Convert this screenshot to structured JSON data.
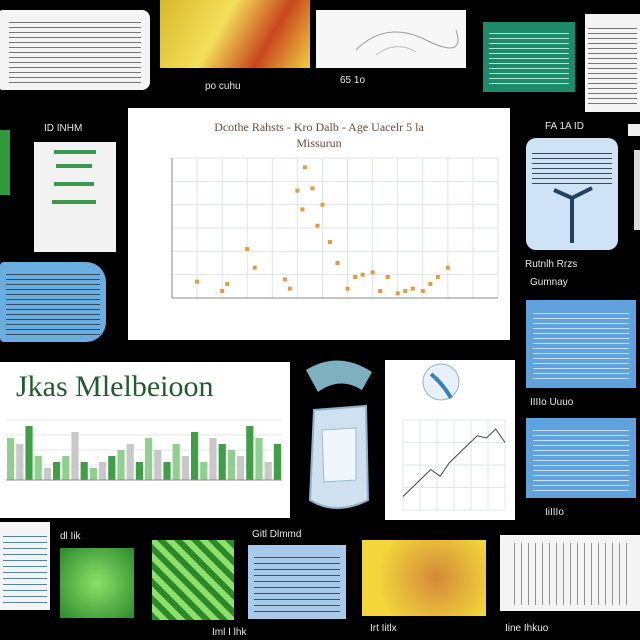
{
  "captions": {
    "top_caption": "po cuhu",
    "right_top_caption": "65 1o",
    "left_caption": "ID INHM",
    "right_caption": "FA 1A ID",
    "right_mid_caption_1": "Rutnlh Rrzs",
    "right_mid_caption_2": "Gumnay",
    "right_lower_caption": "IIIIo Uuuo",
    "right_bottom_caption": "IiIIIo",
    "left_bottom_caption": "dl Iik",
    "middle_bottom_title": "Gitl Dlmmd",
    "bottom_caption_1": "Iml I lhk",
    "bottom_caption_2": "Irt Iitlx",
    "bottom_caption_3": "Iine Ihkuo"
  },
  "center_chart": {
    "title_line1": "Dcothe Rahsts - Kro Dalb - Age Uacelr 5 la",
    "title_line2": "Missurun"
  },
  "lower_panel": {
    "title": "Jkas Mlelbeioon"
  },
  "chart_data": [
    {
      "type": "scatter",
      "title": "",
      "x": [
        1,
        2,
        2.2,
        3,
        3.3,
        4.5,
        4.7,
        5,
        5.2,
        5.3,
        5.6,
        5.8,
        6,
        6.3,
        6.6,
        7,
        7.3,
        7.6,
        8,
        8.3,
        8.6,
        9,
        9.3,
        9.6,
        10,
        10.3,
        10.6,
        11
      ],
      "y": [
        0.7,
        0.3,
        0.6,
        2.1,
        1.3,
        0.8,
        0.4,
        4.6,
        3.8,
        5.6,
        4.7,
        3.1,
        4.0,
        2.4,
        1.5,
        0.4,
        0.9,
        1.0,
        1.1,
        0.3,
        0.9,
        0.2,
        0.3,
        0.4,
        0.3,
        0.6,
        0.9,
        1.3
      ],
      "xlim": [
        0,
        13
      ],
      "ylim": [
        0,
        6
      ],
      "grid": true
    },
    {
      "type": "bar",
      "title": "",
      "values": [
        7,
        6,
        9,
        4,
        2,
        3,
        4,
        8,
        3,
        2,
        3,
        4,
        5,
        6,
        3,
        7,
        5,
        3,
        6,
        4,
        8,
        3,
        7,
        6,
        5,
        4,
        9,
        7,
        3,
        6
      ],
      "ylim": [
        0,
        10
      ],
      "colors": [
        "#8fd08f",
        "#c8c8c8",
        "#3f9f45"
      ]
    },
    {
      "type": "line",
      "title": "",
      "y": [
        0.6,
        1.0,
        1.4,
        1.8,
        1.5,
        2.1,
        2.5,
        2.9,
        3.3,
        3.2,
        3.6,
        3.0
      ],
      "ylim": [
        0,
        4
      ]
    }
  ],
  "colors": {
    "background": "#000000",
    "scatter_marker": "#e59a3d",
    "grid": "#dde3ee",
    "green_bar": "#3f9f45",
    "title_green": "#1f5c2e"
  }
}
